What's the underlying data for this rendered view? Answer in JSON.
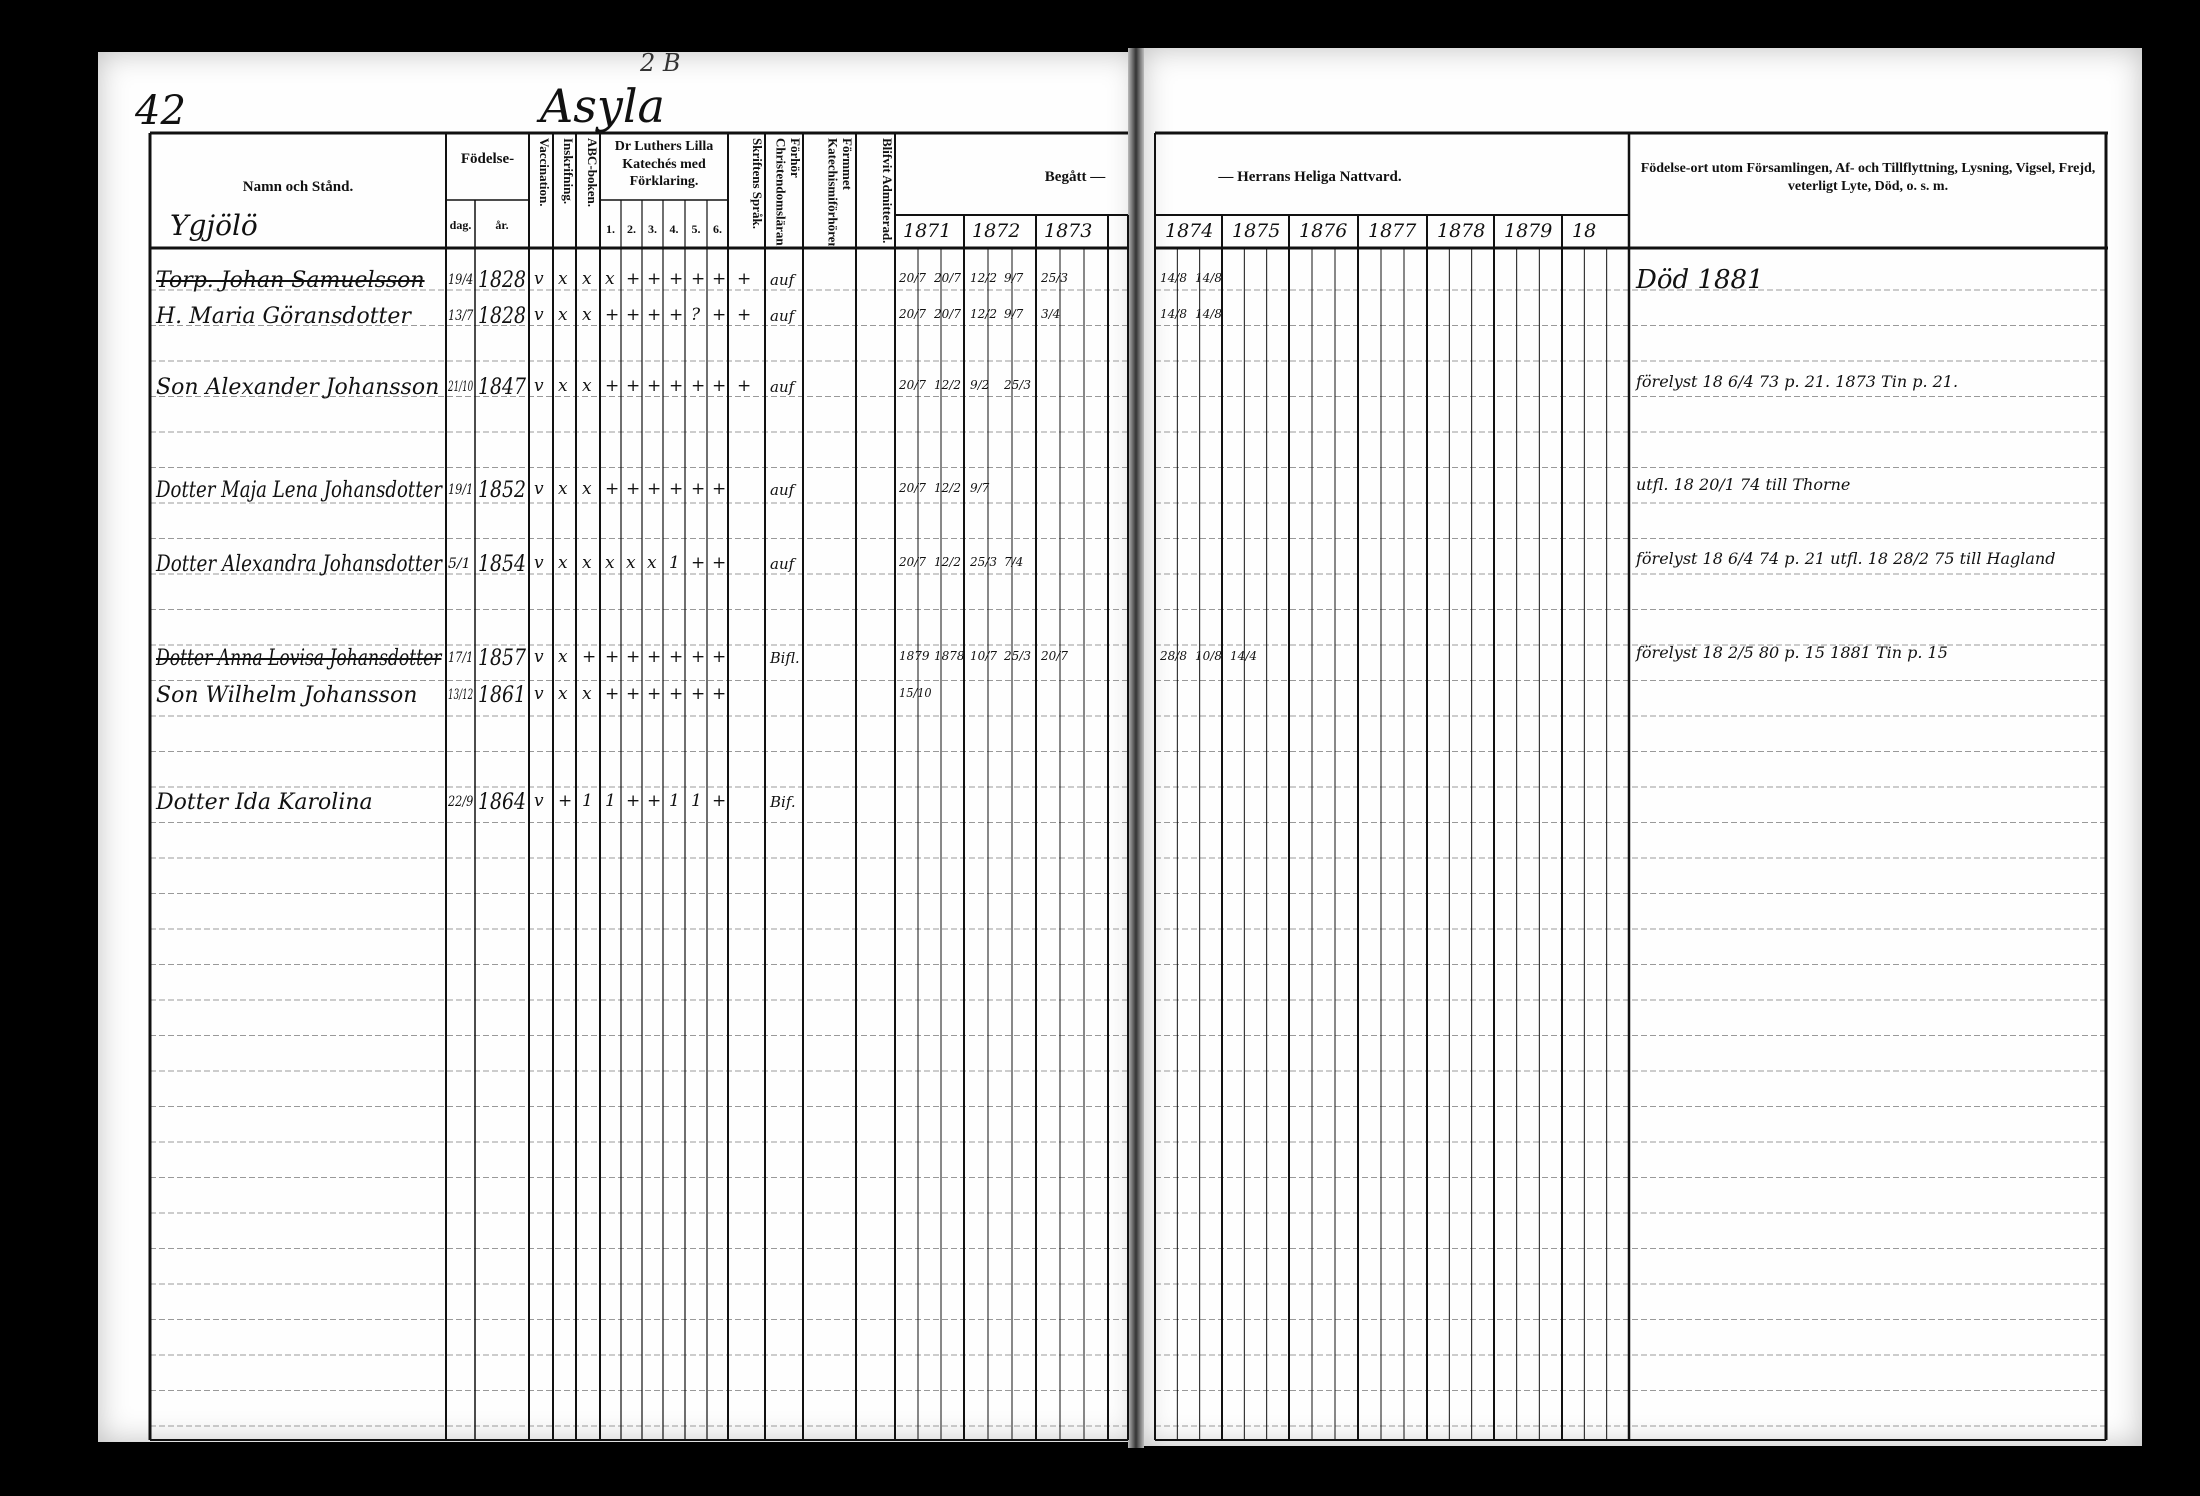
{
  "page_number": "42",
  "place_name": "Asyla",
  "place_annotation": "2 B",
  "farm_name": "Ygjölö",
  "headers": {
    "name": "Namn och Stånd.",
    "birth": "Födelse-",
    "birth_day": "dag.",
    "birth_year": "år.",
    "vaccination": "Vaccination.",
    "enrollment": "Inskrifning.",
    "abc": "ABC-boken.",
    "catechism": "Dr Luthers Lilla Katechés med Förklaring.",
    "catechism_parts": [
      "1.",
      "2.",
      "3.",
      "4.",
      "5.",
      "6."
    ],
    "scripture": "Skriftens Språk.",
    "christianity": "Förhör Christendomsläran.",
    "catechism_meeting": "Förmmet Katechismiförhören.",
    "admitted": "Blifvit Admitterad.",
    "communion_left": "Begått —",
    "communion_right": "— Herrans Heliga Nattvard.",
    "remarks": "Födelse-ort utom Församlingen, Af- och Tillflyttning, Lysning, Vigsel, Frejd, veterligt Lyte, Död, o. s. m."
  },
  "years_left": [
    "1871",
    "1872",
    "1873"
  ],
  "years_right": [
    "1874",
    "1875",
    "1876",
    "1877",
    "1878",
    "1879",
    "18"
  ],
  "rows": [
    {
      "name": "Torp. Johan Samuelsson",
      "struck": true,
      "day": "19/4",
      "year": "1828",
      "marks": [
        "v",
        "x",
        "x",
        "x",
        "+",
        "+",
        "+",
        "+",
        "+",
        "+"
      ],
      "note": "auf",
      "remark": "Död 1881",
      "communion": [
        "20/7",
        "20/7",
        "12/2",
        "9/7",
        "25/3",
        "14/8",
        "14/8"
      ]
    },
    {
      "name": "H. Maria Göransdotter",
      "struck": false,
      "day": "13/7",
      "year": "1828",
      "marks": [
        "v",
        "x",
        "x",
        "+",
        "+",
        "+",
        "+",
        "?",
        "+",
        "+"
      ],
      "note": "auf",
      "remark": "",
      "communion": [
        "20/7",
        "20/7",
        "12/2",
        "9/7",
        "3/4",
        "14/8",
        "14/8"
      ]
    },
    {
      "name": "Son Alexander Johansson",
      "struck": false,
      "day": "21/10",
      "year": "1847",
      "marks": [
        "v",
        "x",
        "x",
        "+",
        "+",
        "+",
        "+",
        "+",
        "+",
        "+"
      ],
      "note": "auf",
      "remark": "förelyst 18 6/4 73 p. 21. 1873 Tin p. 21.",
      "communion": [
        "20/7",
        "12/2",
        "9/2",
        "25/3"
      ]
    },
    {
      "name": "Dotter Maja Lena Johansdotter",
      "struck": false,
      "day": "19/1",
      "year": "1852",
      "marks": [
        "v",
        "x",
        "x",
        "+",
        "+",
        "+",
        "+",
        "+",
        "+"
      ],
      "note": "auf",
      "remark": "utfl. 18 20/1 74 till Thorne",
      "communion": [
        "20/7",
        "12/2",
        "9/7"
      ]
    },
    {
      "name": "Dotter Alexandra Johansdotter",
      "struck": false,
      "day": "5/1",
      "year": "1854",
      "marks": [
        "v",
        "x",
        "x",
        "x",
        "x",
        "x",
        "1",
        "+",
        "+"
      ],
      "note": "auf",
      "remark": "förelyst 18 6/4 74 p. 21 utfl. 18 28/2 75 till Hagland",
      "communion": [
        "20/7",
        "12/2",
        "25/3",
        "7/4"
      ]
    },
    {
      "name": "Dotter Anna Lovisa Johansdotter",
      "struck": true,
      "day": "17/1",
      "year": "1857",
      "marks": [
        "v",
        "x",
        "+",
        "+",
        "+",
        "+",
        "+",
        "+",
        "+"
      ],
      "note": "Bifl.",
      "remark": "förelyst 18 2/5 80 p. 15 1881 Tin p. 15",
      "communion": [
        "1879",
        "1878",
        "10/7",
        "25/3",
        "20/7",
        "28/8",
        "10/8",
        "14/4"
      ]
    },
    {
      "name": "Son Wilhelm Johansson",
      "struck": false,
      "day": "13/12",
      "year": "1861",
      "marks": [
        "v",
        "x",
        "x",
        "+",
        "+",
        "+",
        "+",
        "+",
        "+"
      ],
      "note": "",
      "remark": "",
      "communion": [
        "15/10"
      ]
    },
    {
      "name": "Dotter Ida Karolina",
      "struck": false,
      "day": "22/9",
      "year": "1864",
      "marks": [
        "v",
        "+",
        "1",
        "1",
        "+",
        "+",
        "1",
        "1",
        "+"
      ],
      "note": "Bif.",
      "remark": "",
      "communion": []
    }
  ]
}
